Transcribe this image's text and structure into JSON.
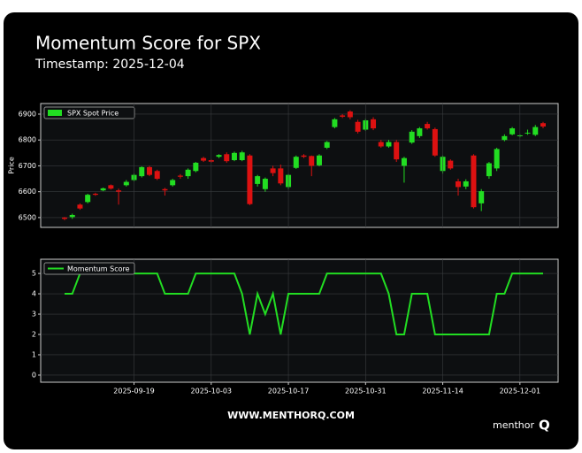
{
  "header": {
    "title": "Momentum Score for SPX",
    "subtitle": "Timestamp: 2025-12-04"
  },
  "chart_data": [
    {
      "type": "candlestick",
      "x": [
        "2025-09-08",
        "2025-09-09",
        "2025-09-10",
        "2025-09-11",
        "2025-09-12",
        "2025-09-15",
        "2025-09-16",
        "2025-09-17",
        "2025-09-18",
        "2025-09-19",
        "2025-09-22",
        "2025-09-23",
        "2025-09-24",
        "2025-09-25",
        "2025-09-26",
        "2025-09-29",
        "2025-09-30",
        "2025-10-01",
        "2025-10-02",
        "2025-10-03",
        "2025-10-06",
        "2025-10-07",
        "2025-10-08",
        "2025-10-09",
        "2025-10-10",
        "2025-10-13",
        "2025-10-14",
        "2025-10-15",
        "2025-10-16",
        "2025-10-17",
        "2025-10-20",
        "2025-10-21",
        "2025-10-22",
        "2025-10-23",
        "2025-10-24",
        "2025-10-27",
        "2025-10-28",
        "2025-10-29",
        "2025-10-30",
        "2025-10-31",
        "2025-11-03",
        "2025-11-04",
        "2025-11-05",
        "2025-11-06",
        "2025-11-07",
        "2025-11-10",
        "2025-11-11",
        "2025-11-12",
        "2025-11-13",
        "2025-11-14",
        "2025-11-17",
        "2025-11-18",
        "2025-11-19",
        "2025-11-20",
        "2025-11-21",
        "2025-11-24",
        "2025-11-25",
        "2025-11-26",
        "2025-11-28",
        "2025-12-01",
        "2025-12-02",
        "2025-12-03",
        "2025-12-04"
      ],
      "series": [
        {
          "name": "SPX Spot Price",
          "color": "#22dd22",
          "down_color": "#dd1111",
          "open": [
            6500,
            6502,
            6550,
            6560,
            6592,
            6605,
            6625,
            6605,
            6625,
            6645,
            6660,
            6695,
            6680,
            6610,
            6625,
            6662,
            6660,
            6680,
            6730,
            6722,
            6735,
            6745,
            6722,
            6722,
            6740,
            6630,
            6610,
            6690,
            6690,
            6618,
            6692,
            6740,
            6738,
            6702,
            6770,
            6850,
            6895,
            6910,
            6870,
            6840,
            6880,
            6792,
            6775,
            6792,
            6700,
            6790,
            6815,
            6862,
            6842,
            6680,
            6720,
            6640,
            6620,
            6740,
            6555,
            6660,
            6690,
            6800,
            6822,
            6815,
            6825,
            6820,
            6865
          ],
          "high": [
            6502,
            6515,
            6555,
            6592,
            6596,
            6616,
            6628,
            6612,
            6645,
            6670,
            6698,
            6700,
            6685,
            6615,
            6650,
            6668,
            6690,
            6715,
            6735,
            6726,
            6745,
            6752,
            6755,
            6758,
            6745,
            6665,
            6655,
            6700,
            6705,
            6668,
            6740,
            6745,
            6740,
            6745,
            6796,
            6885,
            6900,
            6915,
            6878,
            6882,
            6888,
            6800,
            6800,
            6800,
            6735,
            6838,
            6850,
            6870,
            6848,
            6740,
            6725,
            6650,
            6648,
            6745,
            6610,
            6715,
            6770,
            6822,
            6850,
            6822,
            6840,
            6858,
            6870
          ],
          "low": [
            6490,
            6495,
            6530,
            6555,
            6584,
            6602,
            6608,
            6550,
            6620,
            6640,
            6655,
            6660,
            6645,
            6585,
            6620,
            6650,
            6650,
            6675,
            6715,
            6712,
            6730,
            6712,
            6718,
            6718,
            6548,
            6620,
            6600,
            6660,
            6625,
            6610,
            6688,
            6730,
            6660,
            6698,
            6765,
            6845,
            6885,
            6880,
            6825,
            6835,
            6838,
            6770,
            6770,
            6715,
            6635,
            6785,
            6808,
            6840,
            6735,
            6670,
            6685,
            6585,
            6610,
            6535,
            6525,
            6650,
            6680,
            6795,
            6818,
            6810,
            6820,
            6815,
            6845
          ],
          "close": [
            6495,
            6510,
            6535,
            6588,
            6588,
            6613,
            6612,
            6600,
            6638,
            6665,
            6695,
            6665,
            6650,
            6605,
            6645,
            6658,
            6685,
            6712,
            6720,
            6716,
            6742,
            6718,
            6750,
            6752,
            6552,
            6660,
            6650,
            6672,
            6632,
            6665,
            6735,
            6735,
            6700,
            6740,
            6792,
            6880,
            6890,
            6888,
            6832,
            6876,
            6845,
            6775,
            6792,
            6725,
            6730,
            6832,
            6845,
            6845,
            6740,
            6735,
            6690,
            6618,
            6640,
            6540,
            6602,
            6710,
            6765,
            6815,
            6845,
            6818,
            6828,
            6850,
            6852
          ]
        }
      ],
      "ylabel": "Price",
      "ylim": [
        6462,
        6941
      ],
      "yticks": [
        6500,
        6600,
        6700,
        6800,
        6900
      ],
      "grid": true,
      "legend": "upper left"
    },
    {
      "type": "line",
      "x": [
        "2025-09-08",
        "2025-09-09",
        "2025-09-10",
        "2025-09-11",
        "2025-09-12",
        "2025-09-15",
        "2025-09-16",
        "2025-09-17",
        "2025-09-18",
        "2025-09-19",
        "2025-09-22",
        "2025-09-23",
        "2025-09-24",
        "2025-09-25",
        "2025-09-26",
        "2025-09-29",
        "2025-09-30",
        "2025-10-01",
        "2025-10-02",
        "2025-10-03",
        "2025-10-06",
        "2025-10-07",
        "2025-10-08",
        "2025-10-09",
        "2025-10-10",
        "2025-10-13",
        "2025-10-14",
        "2025-10-15",
        "2025-10-16",
        "2025-10-17",
        "2025-10-20",
        "2025-10-21",
        "2025-10-22",
        "2025-10-23",
        "2025-10-24",
        "2025-10-27",
        "2025-10-28",
        "2025-10-29",
        "2025-10-30",
        "2025-10-31",
        "2025-11-03",
        "2025-11-04",
        "2025-11-05",
        "2025-11-06",
        "2025-11-07",
        "2025-11-10",
        "2025-11-11",
        "2025-11-12",
        "2025-11-13",
        "2025-11-14",
        "2025-11-17",
        "2025-11-18",
        "2025-11-19",
        "2025-11-20",
        "2025-11-21",
        "2025-11-24",
        "2025-11-25",
        "2025-11-26",
        "2025-11-28",
        "2025-12-01",
        "2025-12-02",
        "2025-12-03",
        "2025-12-04"
      ],
      "series": [
        {
          "name": "Momentum Score",
          "color": "#22dd22",
          "values": [
            4,
            4,
            5,
            5,
            5,
            5,
            5,
            5,
            5,
            5,
            5,
            5,
            5,
            4,
            4,
            4,
            4,
            5,
            5,
            5,
            5,
            5,
            5,
            4,
            2,
            4,
            3,
            4,
            2,
            4,
            4,
            4,
            4,
            4,
            5,
            5,
            5,
            5,
            5,
            5,
            5,
            5,
            4,
            2,
            2,
            4,
            4,
            4,
            2,
            2,
            2,
            2,
            2,
            2,
            2,
            2,
            4,
            4,
            5,
            5,
            5,
            5,
            5
          ]
        }
      ],
      "ylim": [
        -0.35,
        5.7
      ],
      "yticks": [
        0,
        1,
        2,
        3,
        4,
        5
      ],
      "xticks": [
        "2025-09-19",
        "2025-10-03",
        "2025-10-17",
        "2025-10-31",
        "2025-11-14",
        "2025-12-01"
      ],
      "grid": true,
      "legend": "upper left"
    }
  ],
  "footer": {
    "url": "WWW.MENTHORQ.COM",
    "brand": "menthor",
    "brand_mark": "Q"
  }
}
